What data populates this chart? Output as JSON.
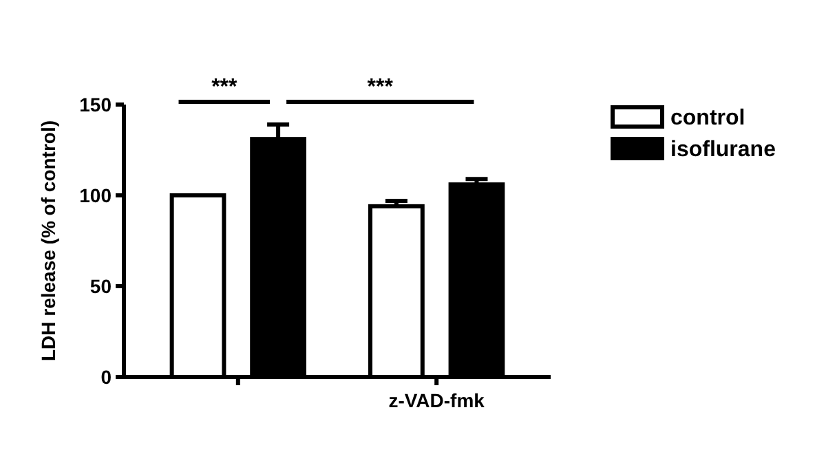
{
  "chart_data": {
    "type": "bar",
    "ylabel": "LDH release (% of control)",
    "categories": [
      null,
      "z-VAD-fmk"
    ],
    "series": [
      {
        "name": "control",
        "color": "#ffffff",
        "values": [
          100,
          94
        ],
        "errors": [
          null,
          3
        ]
      },
      {
        "name": "isoflurane",
        "color": "#000000",
        "values": [
          131,
          106
        ],
        "errors": [
          8,
          3
        ]
      }
    ],
    "ylim": [
      0,
      150
    ],
    "yticks": [
      0,
      50,
      100,
      150
    ],
    "legend": "right",
    "grid": false,
    "annotations": [
      "***",
      "***"
    ]
  }
}
